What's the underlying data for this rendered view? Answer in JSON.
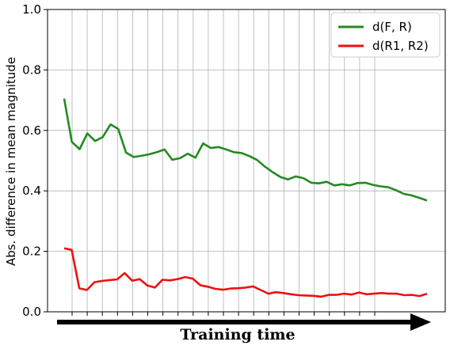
{
  "chart_data": {
    "type": "line",
    "title": "",
    "xlabel": "Training time",
    "ylabel": "Abs. difference in mean magnitude",
    "ylim": [
      0,
      1.0
    ],
    "yticks": [
      "0.0",
      "0.2",
      "0.4",
      "0.6",
      "0.8",
      "1.0"
    ],
    "x_tick_labels_shown": false,
    "grid": true,
    "legend": "top-right",
    "series": [
      {
        "name": "d(F, R)",
        "color": "#228b22",
        "values": [
          0.705,
          0.562,
          0.538,
          0.59,
          0.565,
          0.578,
          0.62,
          0.605,
          0.527,
          0.512,
          0.516,
          0.521,
          0.528,
          0.537,
          0.503,
          0.508,
          0.523,
          0.51,
          0.557,
          0.542,
          0.545,
          0.537,
          0.528,
          0.525,
          0.515,
          0.502,
          0.48,
          0.462,
          0.446,
          0.438,
          0.448,
          0.442,
          0.427,
          0.425,
          0.43,
          0.418,
          0.422,
          0.418,
          0.426,
          0.427,
          0.42,
          0.415,
          0.412,
          0.402,
          0.39,
          0.385,
          0.377,
          0.368
        ]
      },
      {
        "name": "d(R1, R2)",
        "color": "#ee1111",
        "values": [
          0.21,
          0.205,
          0.078,
          0.072,
          0.098,
          0.102,
          0.105,
          0.107,
          0.128,
          0.103,
          0.108,
          0.087,
          0.08,
          0.106,
          0.104,
          0.108,
          0.115,
          0.11,
          0.088,
          0.083,
          0.076,
          0.073,
          0.077,
          0.078,
          0.08,
          0.084,
          0.072,
          0.06,
          0.065,
          0.062,
          0.058,
          0.055,
          0.054,
          0.053,
          0.05,
          0.056,
          0.056,
          0.06,
          0.057,
          0.064,
          0.058,
          0.06,
          0.062,
          0.06,
          0.06,
          0.055,
          0.056,
          0.052,
          0.06
        ]
      }
    ]
  }
}
